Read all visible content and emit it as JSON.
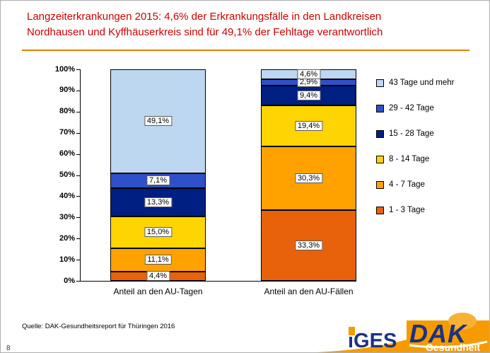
{
  "header": {
    "title_line1": "Langzeiterkrankungen 2015: 4,6% der Erkrankungsfälle in den Landkreisen",
    "title_line2": "Nordhausen und Kyffhäuserkreis sind für 49,1% der Fehltage verantwortlich",
    "title_color": "#cc0000",
    "rule_color": "#e87d00"
  },
  "footer": {
    "source": "Quelle: DAK-Gesundheitsreport für Thüringen 2016",
    "page_number": "8"
  },
  "logos": {
    "iges": "iGES",
    "dak": "DAK",
    "dak_sub": "Gesundheit",
    "orange": "#f59b00",
    "orange_light": "#f8b133",
    "blue": "#1b3283"
  },
  "chart_data": {
    "type": "bar",
    "stacked": "100%",
    "categories": [
      "Anteil an den AU-Tagen",
      "Anteil an den AU-Fällen"
    ],
    "series": [
      {
        "name": "1 - 3 Tage",
        "color": "#e8620c",
        "values": [
          4.4,
          33.3
        ],
        "labels": [
          "4,4%",
          "33,3%"
        ]
      },
      {
        "name": "4 - 7 Tage",
        "color": "#ffa200",
        "values": [
          11.1,
          30.3
        ],
        "labels": [
          "11,1%",
          "30,3%"
        ]
      },
      {
        "name": "8 - 14 Tage",
        "color": "#ffd500",
        "values": [
          15.0,
          19.4
        ],
        "labels": [
          "15,0%",
          "19,4%"
        ]
      },
      {
        "name": "15 - 28 Tage",
        "color": "#001f82",
        "values": [
          13.3,
          9.4
        ],
        "labels": [
          "13,3%",
          "9,4%"
        ]
      },
      {
        "name": "29 - 42 Tage",
        "color": "#2e50c8",
        "values": [
          7.1,
          2.9
        ],
        "labels": [
          "7,1%",
          "2,9%"
        ]
      },
      {
        "name": "43 Tage und mehr",
        "color": "#bdd7f0",
        "values": [
          49.1,
          4.6
        ],
        "labels": [
          "49,1%",
          "4,6%"
        ]
      }
    ],
    "y_ticks": [
      "100%",
      "90%",
      "80%",
      "70%",
      "60%",
      "50%",
      "40%",
      "30%",
      "20%",
      "10%",
      "0%"
    ],
    "ylim": [
      0,
      100
    ],
    "legend_position": "right",
    "legend_top_to_bottom": [
      "43 Tage und mehr",
      "29 - 42 Tage",
      "15 - 28 Tage",
      "8 - 14 Tage",
      "4 - 7 Tage",
      "1 - 3 Tage"
    ]
  }
}
